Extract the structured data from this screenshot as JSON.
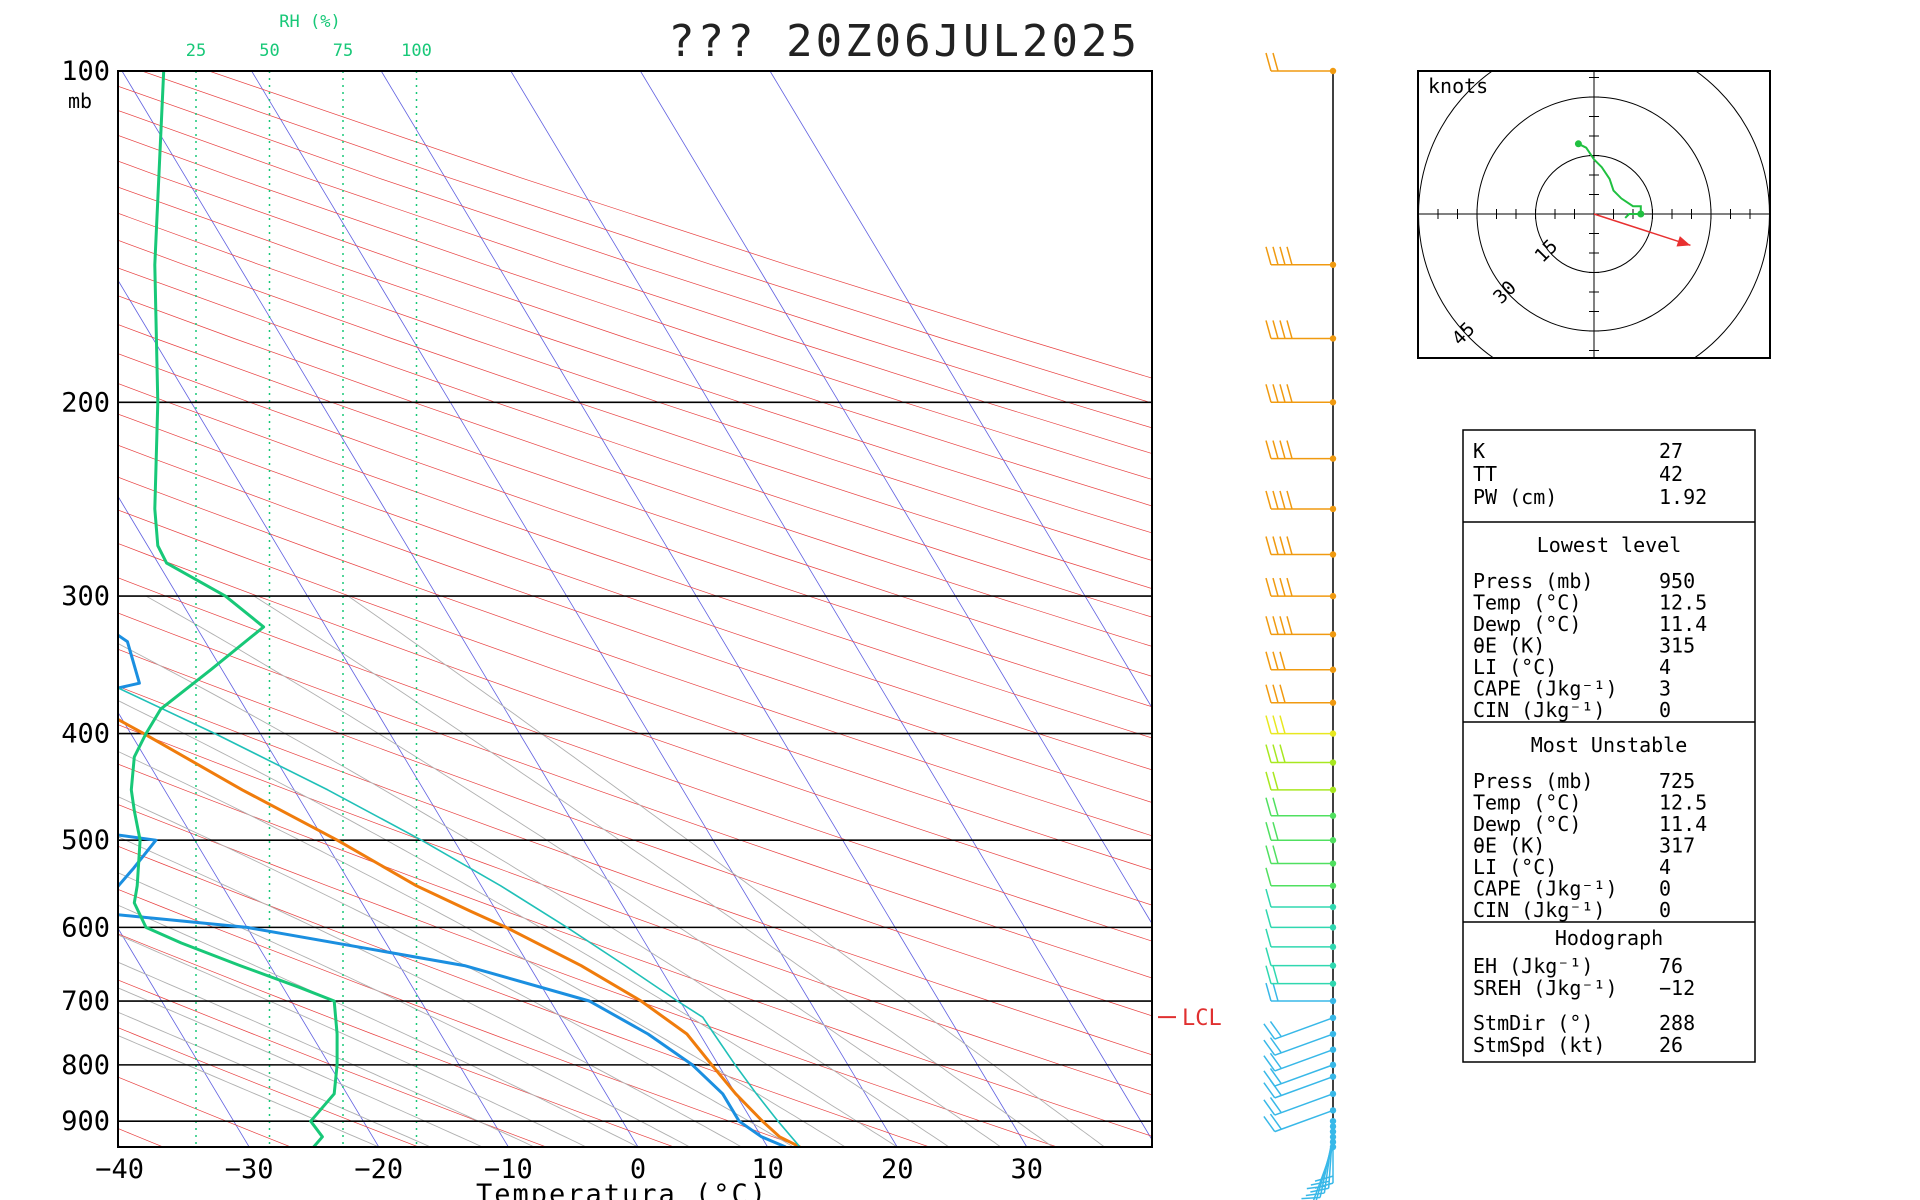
{
  "title": "??? 20Z06JUL2025",
  "skewt": {
    "xlabel": "Temperatura (°C)",
    "pressure_unit": "mb",
    "rh_title": "RH (%)",
    "rh_lines": [
      "25",
      "50",
      "75",
      "100"
    ],
    "temp_ticks": [
      "−40",
      "−30",
      "−20",
      "−10",
      "0",
      "10",
      "20",
      "30"
    ],
    "pressure_ticks": [
      "100",
      "200",
      "300",
      "400",
      "500",
      "600",
      "700",
      "800",
      "900"
    ],
    "lcl_label": "LCL"
  },
  "chart_data": {
    "type": "line",
    "title": "??? 20Z06JUL2025",
    "xlabel": "Temperatura (°C)",
    "ylabel": "mb",
    "xlim": [
      -40,
      40
    ],
    "ylim": [
      950,
      100
    ],
    "yscale": "log",
    "series": [
      {
        "name": "Temperature",
        "color": "#f07c0c",
        "p": [
          950,
          930,
          900,
          850,
          800,
          750,
          700,
          650,
          600,
          580,
          550,
          500,
          450,
          400,
          350,
          300,
          270,
          230,
          200,
          180,
          150,
          130,
          100
        ],
        "t": [
          12.5,
          11.4,
          10.8,
          10.0,
          9.5,
          9.0,
          7.0,
          4.0,
          0.0,
          -2.0,
          -5.0,
          -9.0,
          -14.0,
          -19.0,
          -25.0,
          -33.0,
          -39.0,
          -47.0,
          -53.0,
          -55.0,
          -60.0,
          -66.0,
          -74.0
        ]
      },
      {
        "name": "Dewpoint",
        "color": "#1b8fe0",
        "p": [
          950,
          930,
          900,
          850,
          800,
          750,
          700,
          650,
          600,
          580,
          570,
          550,
          530,
          500,
          480,
          450,
          420,
          400,
          380,
          360,
          330,
          310,
          290,
          260,
          240,
          220,
          200,
          170,
          140,
          100
        ],
        "t": [
          11.4,
          10.0,
          9.0,
          9.0,
          8.0,
          6.0,
          3.0,
          -5.0,
          -20.0,
          -32.0,
          -30.0,
          -28.0,
          -26.0,
          -23.0,
          -33.0,
          -47.0,
          -58.0,
          -43.0,
          -27.0,
          -17.0,
          -16.0,
          -18.0,
          -23.0,
          -36.0,
          -42.0,
          -45.0,
          -47.0,
          -49.0,
          -54.0,
          -67.0
        ]
      },
      {
        "name": "Parcel",
        "color": "#20c0b8",
        "p": [
          950,
          900,
          850,
          800,
          750,
          724,
          700,
          650,
          600,
          550,
          500,
          450,
          400,
          350,
          300,
          250,
          200,
          150,
          100
        ],
        "t": [
          12.5,
          12.0,
          11.6,
          11.3,
          11.1,
          11.0,
          9.8,
          7.4,
          4.7,
          1.5,
          -2.5,
          -7.4,
          -13.5,
          -21.0,
          -30.8,
          -42.0,
          -55.0,
          -70.0,
          -88.0
        ]
      },
      {
        "name": "RH",
        "color": "#18c878",
        "unit": "%",
        "p": [
          950,
          930,
          900,
          850,
          800,
          750,
          700,
          680,
          650,
          620,
          600,
          570,
          550,
          500,
          470,
          450,
          420,
          400,
          380,
          350,
          320,
          300,
          280,
          270,
          250,
          200,
          150,
          100
        ],
        "rh": [
          65,
          68,
          64,
          72,
          73,
          73,
          72,
          60,
          40,
          20,
          8,
          4,
          5,
          6,
          4,
          3,
          4,
          8,
          13,
          30,
          48,
          35,
          15,
          12,
          11,
          12,
          11,
          14
        ]
      }
    ],
    "lcl_pressure": 724
  },
  "wind_profile": {
    "pressures": [
      950,
      940,
      930,
      920,
      910,
      900,
      880,
      850,
      820,
      800,
      775,
      750,
      725,
      700,
      675,
      650,
      625,
      600,
      575,
      550,
      525,
      500,
      475,
      450,
      425,
      400,
      375,
      350,
      325,
      300,
      275,
      250,
      225,
      200,
      175,
      150,
      100
    ],
    "speed_kt": [
      10,
      12,
      14,
      15,
      16,
      17,
      18,
      20,
      22,
      24,
      24,
      22,
      20,
      18,
      15,
      14,
      13,
      12,
      13,
      14,
      15,
      17,
      19,
      22,
      25,
      27,
      30,
      32,
      35,
      38,
      40,
      40,
      40,
      38,
      40,
      42,
      20
    ]
  },
  "hodograph": {
    "units_label": "knots",
    "ring_labels": [
      "15",
      "30",
      "45"
    ],
    "storm_motion_dir_deg": 288,
    "storm_motion_speed_kt": 26
  },
  "indices": {
    "top": [
      {
        "label": "K",
        "value": "27"
      },
      {
        "label": "TT",
        "value": "42"
      },
      {
        "label": "PW (cm)",
        "value": "1.92"
      }
    ],
    "lowest_level": {
      "heading": "Lowest level",
      "rows": [
        {
          "label": "Press (mb)",
          "value": "950"
        },
        {
          "label": "Temp (°C)",
          "value": "12.5"
        },
        {
          "label": "Dewp (°C)",
          "value": "11.4"
        },
        {
          "label": "θE (K)",
          "value": "315"
        },
        {
          "label": "LI (°C)",
          "value": "4"
        },
        {
          "label": "CAPE (Jkg⁻¹)",
          "value": "3"
        },
        {
          "label": "CIN (Jkg⁻¹)",
          "value": "0"
        }
      ]
    },
    "most_unstable": {
      "heading": "Most Unstable",
      "rows": [
        {
          "label": "Press (mb)",
          "value": "725"
        },
        {
          "label": "Temp (°C)",
          "value": "12.5"
        },
        {
          "label": "Dewp (°C)",
          "value": "11.4"
        },
        {
          "label": "θE (K)",
          "value": "317"
        },
        {
          "label": "LI (°C)",
          "value": "4"
        },
        {
          "label": "CAPE (Jkg⁻¹)",
          "value": "0"
        },
        {
          "label": "CIN (Jkg⁻¹)",
          "value": "0"
        }
      ]
    },
    "hodograph": {
      "heading": "Hodograph",
      "rows": [
        {
          "label": "EH (Jkg⁻¹)",
          "value": "76"
        },
        {
          "label": "SREH (Jkg⁻¹)",
          "value": "−12"
        },
        {
          "label": "StmDir (°)",
          "value": "288"
        },
        {
          "label": "StmSpd (kt)",
          "value": "26"
        }
      ]
    }
  },
  "colors": {
    "temperature": "#f07c0c",
    "dewpoint": "#1b8fe0",
    "parcel": "#20c0b8",
    "rh": "#18c878",
    "isotherm": "#6060e0",
    "dry_adiabat": "#e84040",
    "moist_adiabat": "#b0b0b0",
    "lcl": "#e03030"
  }
}
